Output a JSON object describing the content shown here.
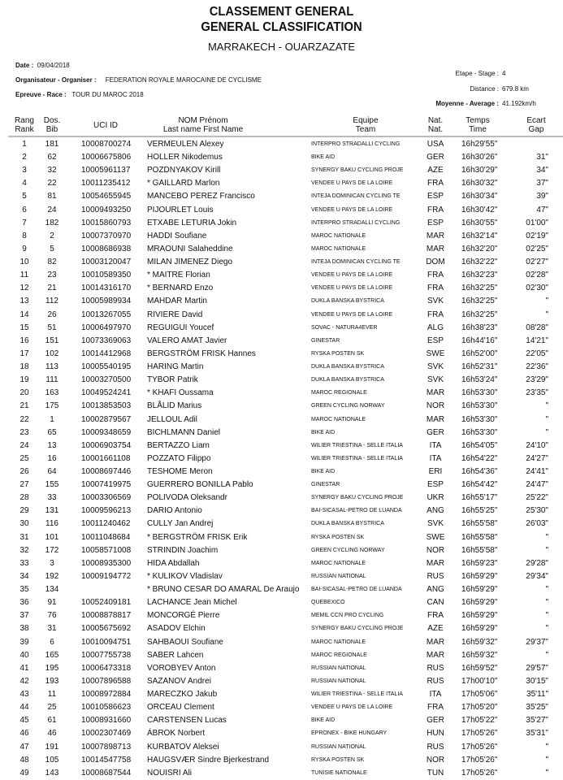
{
  "title": "CLASSEMENT GENERAL",
  "subtitle": "GENERAL CLASSIFICATION",
  "route": "MARRAKECH - OUARZAZATE",
  "meta": {
    "date_label": "Date :",
    "date": "09/04/2018",
    "organiser_label": "Organisateur - Organiser :",
    "organiser": "FEDERATION ROYALE MAROCAINE DE CYCLISME",
    "race_label": "Epreuve - Race :",
    "race": "TOUR DU MAROC 2018",
    "stage_label": "Etape - Stage :",
    "stage": "4",
    "distance_label": "Distance :",
    "distance": "679.8 km",
    "average_label": "Moyenne - Average :",
    "average": "41.192km/h"
  },
  "columns": {
    "rank": [
      "Rang",
      "Rank"
    ],
    "bib": [
      "Dos.",
      "Bib"
    ],
    "uci": [
      "UCI ID"
    ],
    "name": [
      "NOM Prénom",
      "Last name First Name"
    ],
    "team": [
      "Equipe",
      "Team"
    ],
    "nat": [
      "Nat.",
      "Nat."
    ],
    "time": [
      "Temps",
      "Time"
    ],
    "gap": [
      "Ecart",
      "Gap"
    ]
  },
  "rows": [
    [
      "1",
      "181",
      "10008700274",
      "VERMEULEN Alexey",
      "INTERPRO STRADALLI CYCLING",
      "USA",
      "16h29'55\"",
      ""
    ],
    [
      "2",
      "62",
      "10006675806",
      "HOLLER Nikodemus",
      "BIKE AID",
      "GER",
      "16h30'26\"",
      "31\""
    ],
    [
      "3",
      "32",
      "10005961137",
      "POZDNYAKOV Kirill",
      "SYNERGY BAKU CYCLING PROJE",
      "AZE",
      "16h30'29\"",
      "34\""
    ],
    [
      "4",
      "22",
      "10011235412",
      "* GAILLARD Marlon",
      "VENDEE U PAYS DE LA LOIRE",
      "FRA",
      "16h30'32\"",
      "37\""
    ],
    [
      "5",
      "81",
      "10054655945",
      "MANCEBO PEREZ Francisco",
      "INTEJA DOMINICAN CYCLING TE",
      "ESP",
      "16h30'34\"",
      "39\""
    ],
    [
      "6",
      "24",
      "10009493250",
      "PIJOURLET Louis",
      "VENDEE U PAYS DE LA LOIRE",
      "FRA",
      "16h30'42\"",
      "47\""
    ],
    [
      "7",
      "182",
      "10015860793",
      "ETXABE LETURIA Jokin",
      "INTERPRO STRADALLI CYCLING",
      "ESP",
      "16h30'55\"",
      "01'00\""
    ],
    [
      "8",
      "2",
      "10007370970",
      "HADDI Soufiane",
      "MAROC NATIONALE",
      "MAR",
      "16h32'14\"",
      "02'19\""
    ],
    [
      "9",
      "5",
      "10008686938",
      "MRAOUNI Salaheddine",
      "MAROC NATIONALE",
      "MAR",
      "16h32'20\"",
      "02'25\""
    ],
    [
      "10",
      "82",
      "10003120047",
      "MILAN JIMENEZ Diego",
      "INTEJA DOMINICAN CYCLING TE",
      "DOM",
      "16h32'22\"",
      "02'27\""
    ],
    [
      "11",
      "23",
      "10010589350",
      "* MAITRE Florian",
      "VENDEE U PAYS DE LA LOIRE",
      "FRA",
      "16h32'23\"",
      "02'28\""
    ],
    [
      "12",
      "21",
      "10014316170",
      "* BERNARD Enzo",
      "VENDEE U PAYS DE LA LOIRE",
      "FRA",
      "16h32'25\"",
      "02'30\""
    ],
    [
      "13",
      "112",
      "10005989934",
      "MAHDAR Martin",
      "DUKLA BANSKA BYSTRICA",
      "SVK",
      "16h32'25\"",
      "\""
    ],
    [
      "14",
      "26",
      "10013267055",
      "RIVIERE David",
      "VENDEE U PAYS DE LA LOIRE",
      "FRA",
      "16h32'25\"",
      "\""
    ],
    [
      "15",
      "51",
      "10006497970",
      "REGUIGUI Youcef",
      "SOVAC - NATURA4EVER",
      "ALG",
      "16h38'23\"",
      "08'28\""
    ],
    [
      "16",
      "151",
      "10073369063",
      "VALERO AMAT Javier",
      "GINESTAR",
      "ESP",
      "16h44'16\"",
      "14'21\""
    ],
    [
      "17",
      "102",
      "10014412968",
      "BERGSTRÖM FRISK Hannes",
      "RYSKA POSTEN SK",
      "SWE",
      "16h52'00\"",
      "22'05\""
    ],
    [
      "18",
      "113",
      "10005540195",
      "HARING Martin",
      "DUKLA BANSKA BYSTRICA",
      "SVK",
      "16h52'31\"",
      "22'36\""
    ],
    [
      "19",
      "111",
      "10003270500",
      "TYBOR Patrik",
      "DUKLA BANSKA BYSTRICA",
      "SVK",
      "16h53'24\"",
      "23'29\""
    ],
    [
      "20",
      "163",
      "10049524241",
      "* KHAFI Oussama",
      "MAROC REGIONALE",
      "MAR",
      "16h53'30\"",
      "23'35\""
    ],
    [
      "21",
      "175",
      "10013853503",
      "BLÅLID Marius",
      "GREEN CYCLING NORWAY",
      "NOR",
      "16h53'30\"",
      "\""
    ],
    [
      "22",
      "1",
      "10002879567",
      "JELLOUL Adil",
      "MAROC NATIONALE",
      "MAR",
      "16h53'30\"",
      "\""
    ],
    [
      "23",
      "65",
      "10009348659",
      "BICHLMANN Daniel",
      "BIKE AID",
      "GER",
      "16h53'30\"",
      "\""
    ],
    [
      "24",
      "13",
      "10006903754",
      "BERTAZZO Liam",
      "WILIER TRIESTINA - SELLE ITALIA",
      "ITA",
      "16h54'05\"",
      "24'10\""
    ],
    [
      "25",
      "16",
      "10001661108",
      "POZZATO Filippo",
      "WILIER TRIESTINA - SELLE ITALIA",
      "ITA",
      "16h54'22\"",
      "24'27\""
    ],
    [
      "26",
      "64",
      "10008697446",
      "TESHOME Meron",
      "BIKE AID",
      "ERI",
      "16h54'36\"",
      "24'41\""
    ],
    [
      "27",
      "155",
      "10007419975",
      "GUERRERO BONILLA Pablo",
      "GINESTAR",
      "ESP",
      "16h54'42\"",
      "24'47\""
    ],
    [
      "28",
      "33",
      "10003306569",
      "POLIVODA Oleksandr",
      "SYNERGY BAKU CYCLING PROJE",
      "UKR",
      "16h55'17\"",
      "25'22\""
    ],
    [
      "29",
      "131",
      "10009596213",
      "DARIO Antonio",
      "BAI-SICASAL-PETRO DE LUANDA",
      "ANG",
      "16h55'25\"",
      "25'30\""
    ],
    [
      "30",
      "116",
      "10011240462",
      "CULLY Jan Andrej",
      "DUKLA BANSKA BYSTRICA",
      "SVK",
      "16h55'58\"",
      "26'03\""
    ],
    [
      "31",
      "101",
      "10011048684",
      "* BERGSTRÖM FRISK Erik",
      "RYSKA POSTEN SK",
      "SWE",
      "16h55'58\"",
      "\""
    ],
    [
      "32",
      "172",
      "10058571008",
      "STRINDIN Joachim",
      "GREEN CYCLING NORWAY",
      "NOR",
      "16h55'58\"",
      "\""
    ],
    [
      "33",
      "3",
      "10008935300",
      "HIDA Abdallah",
      "MAROC NATIONALE",
      "MAR",
      "16h59'23\"",
      "29'28\""
    ],
    [
      "34",
      "192",
      "10009194772",
      "* KULIKOV Vladislav",
      "RUSSIAN NATIONAL",
      "RUS",
      "16h59'29\"",
      "29'34\""
    ],
    [
      "35",
      "134",
      "",
      "* BRUNO CESAR DO AMARAL De Araujo",
      "BAI-SICASAL-PETRO DE LUANDA",
      "ANG",
      "16h59'29\"",
      "\""
    ],
    [
      "36",
      "91",
      "10052409181",
      "LACHANCE Jean Michel",
      "QUEBEXICO",
      "CAN",
      "16h59'29\"",
      "\""
    ],
    [
      "37",
      "76",
      "10008878817",
      "MONCORGÉ Pierre",
      "MEMIL CCN PRO CYCLING",
      "FRA",
      "16h59'29\"",
      "\""
    ],
    [
      "38",
      "31",
      "10005675692",
      "ASADOV Elchin",
      "SYNERGY BAKU CYCLING PROJE",
      "AZE",
      "16h59'29\"",
      "\""
    ],
    [
      "39",
      "6",
      "10010094751",
      "SAHBAOUI Soufiane",
      "MAROC NATIONALE",
      "MAR",
      "16h59'32\"",
      "29'37\""
    ],
    [
      "40",
      "165",
      "10007755738",
      "SABER Lahcen",
      "MAROC REGIONALE",
      "MAR",
      "16h59'32\"",
      "\""
    ],
    [
      "41",
      "195",
      "10006473318",
      "VOROBYEV Anton",
      "RUSSIAN NATIONAL",
      "RUS",
      "16h59'52\"",
      "29'57\""
    ],
    [
      "42",
      "193",
      "10007896588",
      "SAZANOV Andrei",
      "RUSSIAN NATIONAL",
      "RUS",
      "17h00'10\"",
      "30'15\""
    ],
    [
      "43",
      "11",
      "10008972884",
      "MARECZKO Jakub",
      "WILIER TRIESTINA - SELLE ITALIA",
      "ITA",
      "17h05'06\"",
      "35'11\""
    ],
    [
      "44",
      "25",
      "10010586623",
      "ORCEAU Clement",
      "VENDEE U PAYS DE LA LOIRE",
      "FRA",
      "17h05'20\"",
      "35'25\""
    ],
    [
      "45",
      "61",
      "10008931660",
      "CARSTENSEN Lucas",
      "BIKE AID",
      "GER",
      "17h05'22\"",
      "35'27\""
    ],
    [
      "46",
      "46",
      "10002307469",
      "ÁBROK Norbert",
      "EPRONEX - BIKE HUNGARY",
      "HUN",
      "17h05'26\"",
      "35'31\""
    ],
    [
      "47",
      "191",
      "10007898713",
      "KURBATOV Aleksei",
      "RUSSIAN NATIONAL",
      "RUS",
      "17h05'26\"",
      "\""
    ],
    [
      "48",
      "105",
      "10014547758",
      "HAUGSVÆR Sindre Bjerkestrand",
      "RYSKA POSTEN SK",
      "NOR",
      "17h05'26\"",
      "\""
    ],
    [
      "49",
      "143",
      "10008687544",
      "NOUISRI Ali",
      "TUNISIE NATIONALE",
      "TUN",
      "17h05'26\"",
      "\""
    ]
  ]
}
